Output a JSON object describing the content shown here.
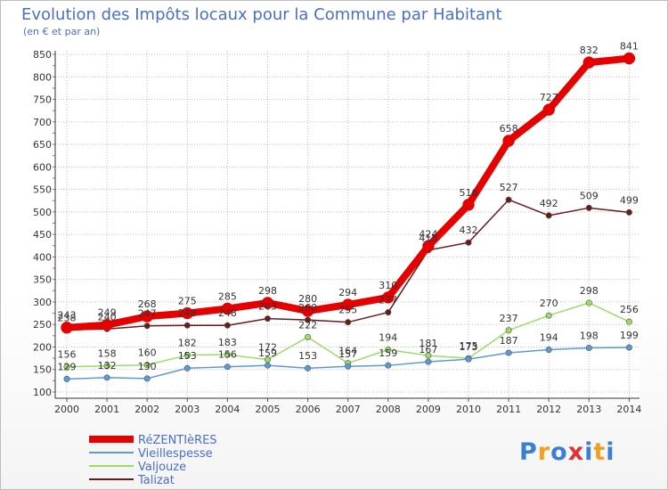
{
  "chart_data": {
    "type": "line",
    "title": "Evolution des Impôts locaux pour la Commune par Habitant",
    "subtitle": "(en € et par an)",
    "xlabel": "",
    "ylabel": "",
    "categories": [
      "2000",
      "2001",
      "2002",
      "2003",
      "2004",
      "2005",
      "2006",
      "2007",
      "2008",
      "2009",
      "2010",
      "2011",
      "2012",
      "2013",
      "2014"
    ],
    "ylim": [
      100,
      850
    ],
    "yticks": [
      "100",
      "150",
      "200",
      "250",
      "300",
      "350",
      "400",
      "450",
      "500",
      "550",
      "600",
      "650",
      "700",
      "750",
      "800",
      "850"
    ],
    "series": [
      {
        "name": "RéZENTIèRES",
        "color": "#e60000",
        "values": [
          243,
          249,
          268,
          275,
          285,
          298,
          280,
          294,
          310,
          424,
          516,
          658,
          727,
          832,
          841
        ]
      },
      {
        "name": "Vieillespesse",
        "color": "#5b9bd5",
        "values": [
          129,
          132,
          130,
          153,
          156,
          159,
          153,
          157,
          159,
          167,
          173,
          187,
          194,
          198,
          199
        ]
      },
      {
        "name": "Valjouze",
        "color": "#99dd66",
        "values": [
          156,
          158,
          160,
          182,
          183,
          172,
          222,
          164,
          194,
          181,
          175,
          237,
          270,
          298,
          256
        ]
      },
      {
        "name": "Talizat",
        "color": "#6b1a1a",
        "values": [
          238,
          240,
          247,
          248,
          248,
          263,
          260,
          255,
          277,
          415,
          432,
          527,
          492,
          509,
          499
        ]
      }
    ],
    "legend": [
      "RéZENTIèRES",
      "Vieillespesse",
      "Valjouze",
      "Talizat"
    ],
    "legend_position": "bottom-left"
  },
  "logo": {
    "letters": [
      "P",
      "r",
      "o",
      "x",
      "i",
      "t",
      "i"
    ],
    "colors": [
      "#3a7fd5",
      "#f0a020",
      "#3a7fd5",
      "#e63030",
      "#3a7fd5",
      "#f0a020",
      "#3a7fd5"
    ]
  }
}
